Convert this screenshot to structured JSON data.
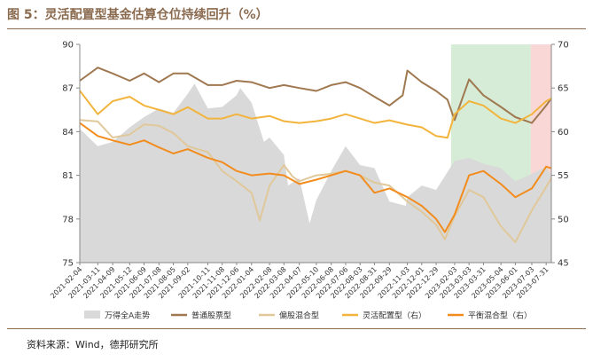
{
  "title": "图 5：灵活配置型基金估算仓位持续回升（%）",
  "source": "资料来源：Wind，德邦研究所",
  "chart_data": {
    "type": "line",
    "title": "",
    "y_left": {
      "range": [
        75,
        90
      ],
      "ticks": [
        "75",
        "78",
        "81",
        "84",
        "87",
        "90"
      ]
    },
    "y_right": {
      "range": [
        45,
        70
      ],
      "ticks": [
        "45",
        "50",
        "55",
        "60",
        "65",
        "70"
      ]
    },
    "x_range": [
      "2021-02-04",
      "2023-08-10"
    ],
    "x_ticks": [
      "2021-02-04",
      "2021-03-11",
      "2021-04-09",
      "2021-05-12",
      "2021-06-09",
      "2021-07-08",
      "2021-08-05",
      "2021-09-02",
      "2021-10-11",
      "2021-11-08",
      "2021-12-06",
      "2022-01-04",
      "2022-02-08",
      "2022-03-08",
      "2022-04-07",
      "2022-05-10",
      "2022-06-08",
      "2022-07-06",
      "2022-08-03",
      "2022-08-31",
      "2022-09-29",
      "2022-11-03",
      "2022-12-01",
      "2022-12-29",
      "2023-02-03",
      "2023-03-03",
      "2023-03-31",
      "2023-05-04",
      "2023-06-01",
      "2023-07-03",
      "2023-07-31"
    ],
    "highlight_regions": [
      {
        "from": "2023-01-27",
        "to": "2023-07-01",
        "color": "#c8e6c9"
      },
      {
        "from": "2023-07-01",
        "to": "2023-08-10",
        "color": "#f7c9c9"
      }
    ],
    "series": [
      {
        "name": "万得全A走势",
        "axis": "left",
        "style": "area",
        "color": "#d9d9d9",
        "points": [
          [
            "2021-02-04",
            84.2
          ],
          [
            "2021-03-11",
            83.0
          ],
          [
            "2021-04-09",
            83.3
          ],
          [
            "2021-05-12",
            84.3
          ],
          [
            "2021-06-09",
            85.0
          ],
          [
            "2021-07-08",
            85.6
          ],
          [
            "2021-08-05",
            85.3
          ],
          [
            "2021-09-02",
            86.6
          ],
          [
            "2021-09-15",
            87.3
          ],
          [
            "2021-10-11",
            85.6
          ],
          [
            "2021-11-08",
            85.7
          ],
          [
            "2021-12-06",
            86.5
          ],
          [
            "2021-12-13",
            87.0
          ],
          [
            "2022-01-04",
            86.0
          ],
          [
            "2022-01-28",
            83.3
          ],
          [
            "2022-02-08",
            83.6
          ],
          [
            "2022-03-08",
            82.4
          ],
          [
            "2022-03-16",
            80.3
          ],
          [
            "2022-04-07",
            80.8
          ],
          [
            "2022-04-27",
            77.7
          ],
          [
            "2022-05-10",
            79.3
          ],
          [
            "2022-06-08",
            81.3
          ],
          [
            "2022-07-06",
            83.0
          ],
          [
            "2022-08-03",
            81.7
          ],
          [
            "2022-08-31",
            81.5
          ],
          [
            "2022-09-29",
            79.2
          ],
          [
            "2022-10-31",
            78.9
          ],
          [
            "2022-11-03",
            79.5
          ],
          [
            "2022-12-01",
            80.3
          ],
          [
            "2022-12-29",
            80.0
          ],
          [
            "2023-02-03",
            82.0
          ],
          [
            "2023-03-03",
            82.2
          ],
          [
            "2023-03-31",
            81.8
          ],
          [
            "2023-05-04",
            81.5
          ],
          [
            "2023-06-01",
            80.6
          ],
          [
            "2023-07-03",
            81.1
          ],
          [
            "2023-07-31",
            81.6
          ],
          [
            "2023-08-10",
            81.0
          ]
        ]
      },
      {
        "name": "普通股票型",
        "axis": "left",
        "style": "line",
        "color": "#a07850",
        "points": [
          [
            "2021-02-04",
            87.5
          ],
          [
            "2021-03-11",
            88.4
          ],
          [
            "2021-04-09",
            88.0
          ],
          [
            "2021-05-12",
            87.5
          ],
          [
            "2021-06-09",
            88.0
          ],
          [
            "2021-07-08",
            87.4
          ],
          [
            "2021-08-05",
            88.0
          ],
          [
            "2021-09-02",
            88.0
          ],
          [
            "2021-10-11",
            87.2
          ],
          [
            "2021-11-08",
            87.2
          ],
          [
            "2021-12-06",
            87.5
          ],
          [
            "2022-01-04",
            87.4
          ],
          [
            "2022-02-08",
            87.0
          ],
          [
            "2022-03-08",
            87.2
          ],
          [
            "2022-04-07",
            87.0
          ],
          [
            "2022-05-10",
            86.8
          ],
          [
            "2022-06-08",
            87.2
          ],
          [
            "2022-07-06",
            87.4
          ],
          [
            "2022-08-03",
            87.0
          ],
          [
            "2022-08-31",
            86.4
          ],
          [
            "2022-09-29",
            85.8
          ],
          [
            "2022-10-25",
            86.5
          ],
          [
            "2022-11-03",
            88.2
          ],
          [
            "2022-12-01",
            87.4
          ],
          [
            "2022-12-29",
            86.8
          ],
          [
            "2023-01-20",
            86.2
          ],
          [
            "2023-02-03",
            84.8
          ],
          [
            "2023-03-03",
            87.6
          ],
          [
            "2023-03-31",
            86.5
          ],
          [
            "2023-05-04",
            85.7
          ],
          [
            "2023-06-01",
            85.0
          ],
          [
            "2023-07-03",
            84.6
          ],
          [
            "2023-07-31",
            85.8
          ],
          [
            "2023-08-10",
            86.3
          ]
        ]
      },
      {
        "name": "偏股混合型",
        "axis": "left",
        "style": "line",
        "color": "#e0c89a",
        "points": [
          [
            "2021-02-04",
            84.8
          ],
          [
            "2021-03-11",
            84.7
          ],
          [
            "2021-04-09",
            83.6
          ],
          [
            "2021-05-12",
            83.8
          ],
          [
            "2021-06-09",
            84.5
          ],
          [
            "2021-07-08",
            84.4
          ],
          [
            "2021-08-05",
            83.9
          ],
          [
            "2021-09-02",
            83.0
          ],
          [
            "2021-10-11",
            82.6
          ],
          [
            "2021-11-08",
            81.3
          ],
          [
            "2021-12-06",
            80.6
          ],
          [
            "2022-01-04",
            79.8
          ],
          [
            "2022-01-20",
            77.9
          ],
          [
            "2022-02-08",
            80.3
          ],
          [
            "2022-03-08",
            81.7
          ],
          [
            "2022-03-25",
            80.9
          ],
          [
            "2022-04-07",
            80.6
          ],
          [
            "2022-05-10",
            81.0
          ],
          [
            "2022-06-08",
            81.1
          ],
          [
            "2022-07-06",
            81.3
          ],
          [
            "2022-08-03",
            81.0
          ],
          [
            "2022-08-31",
            80.5
          ],
          [
            "2022-09-29",
            80.3
          ],
          [
            "2022-11-03",
            79.2
          ],
          [
            "2022-12-01",
            78.5
          ],
          [
            "2022-12-29",
            77.6
          ],
          [
            "2023-01-15",
            76.6
          ],
          [
            "2023-02-03",
            78.2
          ],
          [
            "2023-03-03",
            80.0
          ],
          [
            "2023-03-31",
            79.5
          ],
          [
            "2023-05-04",
            77.5
          ],
          [
            "2023-06-01",
            76.4
          ],
          [
            "2023-07-03",
            78.6
          ],
          [
            "2023-07-31",
            80.2
          ],
          [
            "2023-08-10",
            80.8
          ]
        ]
      },
      {
        "name": "灵活配置型（右）",
        "axis": "right",
        "style": "line",
        "color": "#f2b43d",
        "points": [
          [
            "2021-02-04",
            64.7
          ],
          [
            "2021-03-11",
            62.0
          ],
          [
            "2021-04-09",
            63.5
          ],
          [
            "2021-05-12",
            64.0
          ],
          [
            "2021-06-09",
            63.0
          ],
          [
            "2021-07-08",
            62.5
          ],
          [
            "2021-08-05",
            62.0
          ],
          [
            "2021-09-02",
            62.8
          ],
          [
            "2021-10-11",
            61.5
          ],
          [
            "2021-11-08",
            61.5
          ],
          [
            "2021-12-06",
            62.0
          ],
          [
            "2022-01-04",
            61.5
          ],
          [
            "2022-02-08",
            61.8
          ],
          [
            "2022-03-08",
            61.2
          ],
          [
            "2022-04-07",
            61.0
          ],
          [
            "2022-05-10",
            61.2
          ],
          [
            "2022-06-08",
            61.5
          ],
          [
            "2022-07-06",
            62.0
          ],
          [
            "2022-08-03",
            61.5
          ],
          [
            "2022-08-31",
            61.0
          ],
          [
            "2022-09-29",
            61.3
          ],
          [
            "2022-11-03",
            60.8
          ],
          [
            "2022-12-01",
            60.5
          ],
          [
            "2022-12-29",
            59.5
          ],
          [
            "2023-01-20",
            59.3
          ],
          [
            "2023-02-03",
            62.0
          ],
          [
            "2023-03-03",
            63.5
          ],
          [
            "2023-03-31",
            63.0
          ],
          [
            "2023-05-04",
            61.5
          ],
          [
            "2023-06-01",
            61.0
          ],
          [
            "2023-07-03",
            62.0
          ],
          [
            "2023-07-31",
            63.5
          ],
          [
            "2023-08-10",
            63.8
          ]
        ]
      },
      {
        "name": "平衡混合型（右）",
        "axis": "right",
        "style": "line",
        "color": "#f28c1e",
        "points": [
          [
            "2021-02-04",
            61.0
          ],
          [
            "2021-03-11",
            59.5
          ],
          [
            "2021-04-09",
            59.0
          ],
          [
            "2021-05-12",
            58.5
          ],
          [
            "2021-06-09",
            59.0
          ],
          [
            "2021-07-08",
            58.2
          ],
          [
            "2021-08-05",
            57.5
          ],
          [
            "2021-09-02",
            58.0
          ],
          [
            "2021-10-11",
            57.0
          ],
          [
            "2021-11-08",
            56.5
          ],
          [
            "2021-12-06",
            55.5
          ],
          [
            "2022-01-04",
            55.0
          ],
          [
            "2022-02-08",
            55.2
          ],
          [
            "2022-03-08",
            55.0
          ],
          [
            "2022-04-07",
            54.0
          ],
          [
            "2022-05-10",
            54.5
          ],
          [
            "2022-06-08",
            55.0
          ],
          [
            "2022-07-06",
            55.5
          ],
          [
            "2022-08-03",
            55.0
          ],
          [
            "2022-08-31",
            53.0
          ],
          [
            "2022-09-29",
            53.5
          ],
          [
            "2022-11-03",
            52.5
          ],
          [
            "2022-12-01",
            51.5
          ],
          [
            "2022-12-29",
            50.0
          ],
          [
            "2023-01-15",
            48.5
          ],
          [
            "2023-02-03",
            50.5
          ],
          [
            "2023-03-03",
            55.0
          ],
          [
            "2023-03-31",
            55.5
          ],
          [
            "2023-05-04",
            54.0
          ],
          [
            "2023-06-01",
            52.5
          ],
          [
            "2023-07-03",
            53.5
          ],
          [
            "2023-07-31",
            56.0
          ],
          [
            "2023-08-10",
            55.8
          ]
        ]
      }
    ],
    "legend": [
      "万得全A走势",
      "普通股票型",
      "偏股混合型",
      "灵活配置型（右）",
      "平衡混合型（右）"
    ]
  }
}
